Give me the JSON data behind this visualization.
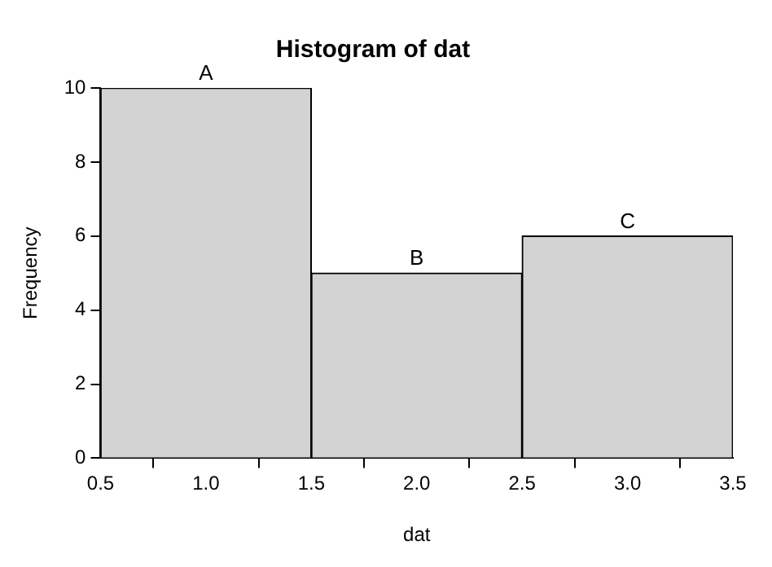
{
  "chart_data": {
    "type": "histogram",
    "title": "Histogram of dat",
    "xlabel": "dat",
    "ylabel": "Frequency",
    "bins": [
      0.5,
      1.5,
      2.5,
      3.5
    ],
    "values": [
      10,
      5,
      6
    ],
    "color": "#d3d3d3",
    "xlim": [
      0.5,
      3.5
    ],
    "xticks": [
      {
        "value": 0.5,
        "label": "0.5"
      },
      {
        "value": 1,
        "label": "1.0"
      },
      {
        "value": 1.5,
        "label": "1.5"
      },
      {
        "value": 2,
        "label": "2.0"
      },
      {
        "value": 2.5,
        "label": "2.5"
      },
      {
        "value": 3,
        "label": "3.0"
      },
      {
        "value": 3.5,
        "label": "3.5"
      }
    ],
    "ylim": [
      0,
      10
    ],
    "yticks": [
      0,
      2,
      4,
      6,
      8,
      10
    ],
    "grid": false,
    "annotations": [
      {
        "text": "A",
        "x": 1,
        "y": 10
      },
      {
        "text": "B",
        "x": 2,
        "y": 5
      },
      {
        "text": "C",
        "x": 3,
        "y": 6
      }
    ]
  }
}
